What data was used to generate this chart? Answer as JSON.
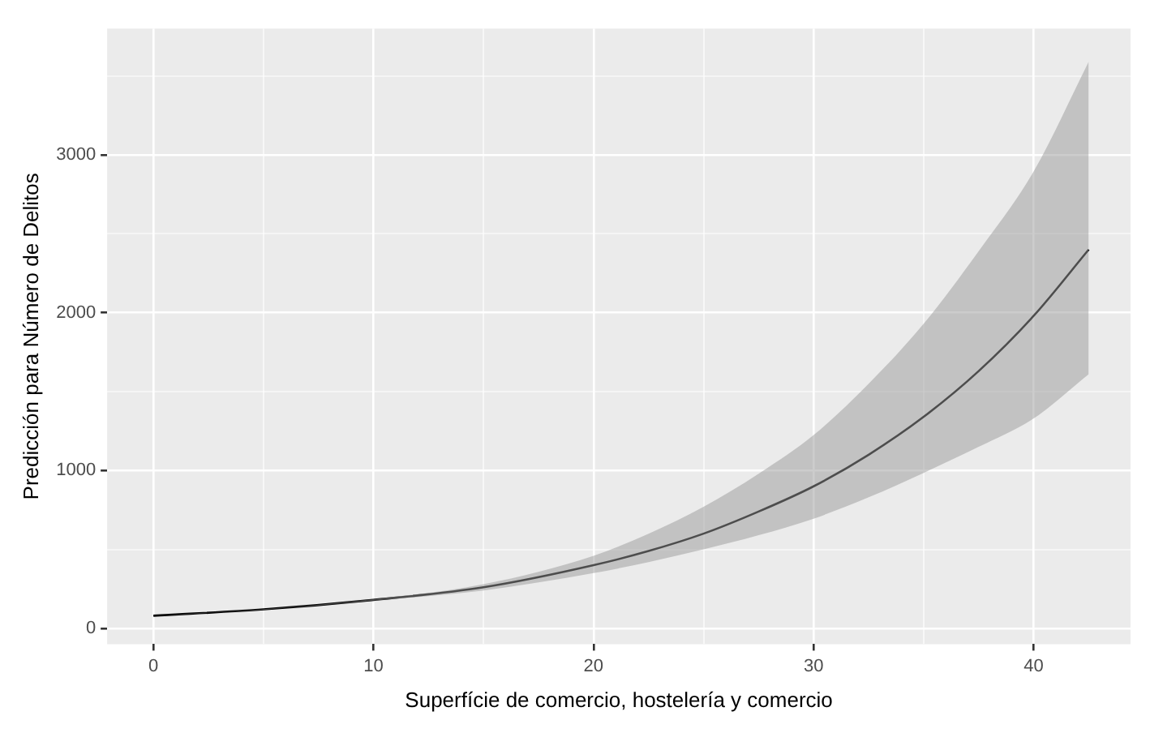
{
  "chart_data": {
    "type": "line",
    "xlabel": "Superfície de comercio, hostelería y comercio",
    "ylabel": "Predicción para Número de Delitos",
    "series": [
      {
        "color": "#000000",
        "x": [
          0,
          5,
          10,
          15,
          20,
          22.5,
          25,
          27.5,
          30,
          32.5,
          35,
          37.5,
          40,
          42.5
        ],
        "values": [
          80,
          120,
          180,
          260,
          400,
          490,
          600,
          740,
          900,
          1100,
          1340,
          1630,
          1980,
          2400
        ],
        "lower": [
          80,
          118,
          175,
          240,
          350,
          420,
          500,
          590,
          695,
          830,
          985,
          1150,
          1330,
          1610
        ],
        "upper": [
          80,
          122,
          185,
          280,
          460,
          600,
          770,
          980,
          1225,
          1550,
          1930,
          2390,
          2895,
          3590
        ]
      }
    ],
    "xlim": [
      -2.1,
      44.4
    ],
    "ylim": [
      -100,
      3800
    ],
    "xticks": [
      0,
      {
        "value": 5,
        "label": null
      },
      10,
      {
        "value": 15,
        "label": null
      },
      20,
      {
        "value": 25,
        "label": null
      },
      30,
      {
        "value": 35,
        "label": null
      },
      40
    ],
    "yticks": [
      0,
      {
        "value": 500,
        "label": null
      },
      1000,
      {
        "value": 1500,
        "label": null
      },
      2000,
      {
        "value": 2500,
        "label": null
      },
      3000,
      {
        "value": 3500,
        "label": null
      }
    ],
    "grid": true,
    "marker": "none",
    "line_style": "solid",
    "legend": false
  }
}
